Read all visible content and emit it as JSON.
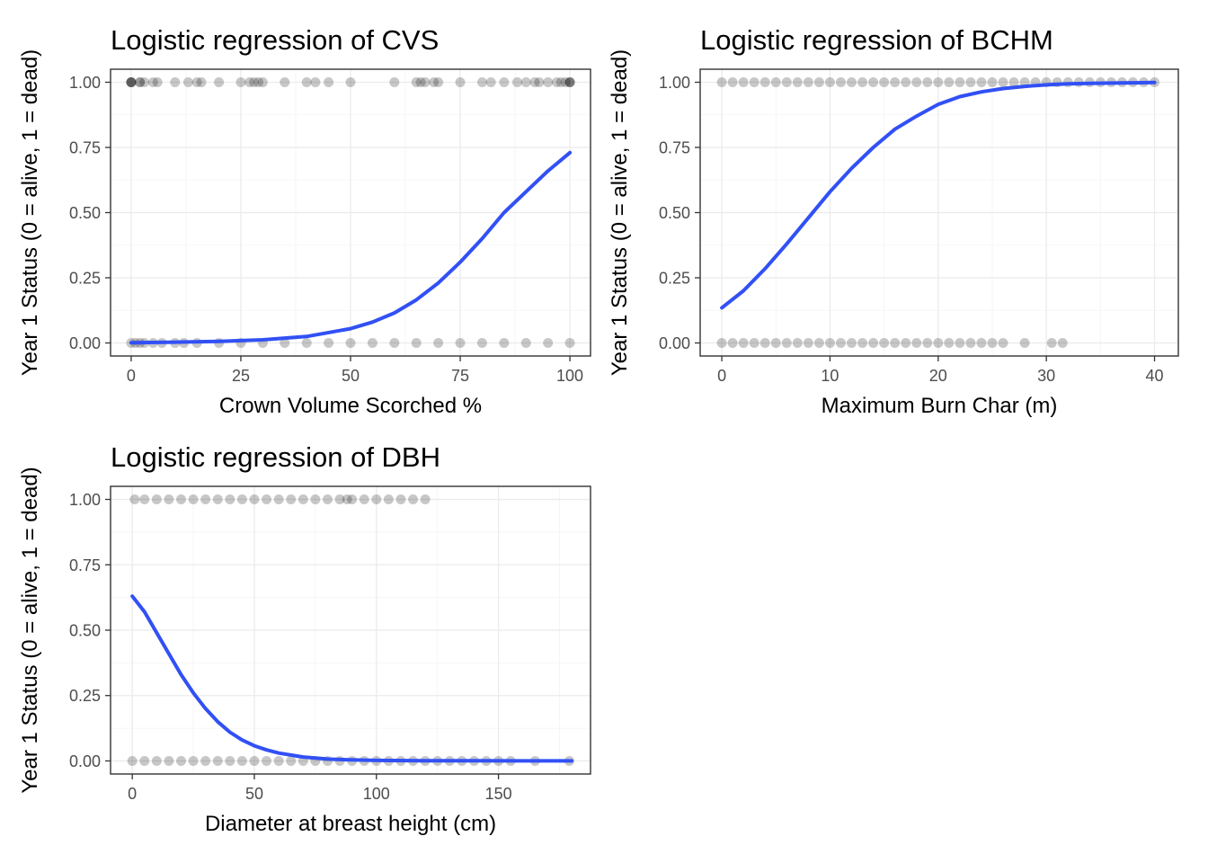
{
  "chart_data": [
    {
      "type": "scatter",
      "title": "Logistic regression of CVS",
      "xlabel": "Crown Volume Scorched %",
      "ylabel": "Year 1 Status (0 = alive, 1 = dead)",
      "xlim": [
        -4.7,
        104.7
      ],
      "ylim": [
        -0.05,
        1.05
      ],
      "xticks": [
        0,
        25,
        50,
        75,
        100
      ],
      "xtick_labels": [
        "0",
        "25",
        "50",
        "75",
        "100"
      ],
      "yticks": [
        0,
        0.25,
        0.5,
        0.75,
        1.0
      ],
      "ytick_labels": [
        "0.00",
        "0.25",
        "0.50",
        "0.75",
        "1.00"
      ],
      "grid": true,
      "point_color": "#000000",
      "line_color": "#3150f5",
      "series": [
        {
          "kind": "points",
          "x": [
            0,
            1,
            2,
            3,
            5,
            7,
            10,
            12,
            15,
            20,
            25,
            30,
            35,
            40,
            45,
            50,
            55,
            60,
            65,
            70,
            75,
            80,
            85,
            90,
            95,
            100,
            0,
            0,
            0,
            0,
            2,
            2,
            3,
            5,
            6,
            10,
            13,
            15,
            16,
            20,
            25,
            27,
            28,
            29,
            30,
            35,
            40,
            42,
            45,
            50,
            60,
            65,
            66,
            67,
            69,
            70,
            75,
            80,
            82,
            85,
            88,
            90,
            92,
            93,
            95,
            97,
            98,
            99,
            100,
            100,
            100
          ],
          "y": [
            0,
            0,
            0,
            0,
            0,
            0,
            0,
            0,
            0,
            0,
            0,
            0,
            0,
            0,
            0,
            0,
            0,
            0,
            0,
            0,
            0,
            0,
            0,
            0,
            0,
            0,
            1,
            1,
            1,
            1,
            1,
            1,
            1,
            1,
            1,
            1,
            1,
            1,
            1,
            1,
            1,
            1,
            1,
            1,
            1,
            1,
            1,
            1,
            1,
            1,
            1,
            1,
            1,
            1,
            1,
            1,
            1,
            1,
            1,
            1,
            1,
            1,
            1,
            1,
            1,
            1,
            1,
            1,
            1,
            1,
            1
          ]
        },
        {
          "kind": "line",
          "x": [
            0,
            10,
            20,
            30,
            40,
            50,
            55,
            60,
            65,
            70,
            75,
            80,
            85,
            90,
            95,
            100
          ],
          "y": [
            0.001,
            0.003,
            0.006,
            0.012,
            0.025,
            0.055,
            0.08,
            0.115,
            0.165,
            0.23,
            0.31,
            0.4,
            0.5,
            0.58,
            0.66,
            0.73
          ]
        }
      ]
    },
    {
      "type": "scatter",
      "title": "Logistic regression of BCHM",
      "xlabel": "Maximum Burn Char (m)",
      "ylabel": "Year 1 Status (0 = alive, 1 = dead)",
      "xlim": [
        -2.0,
        42.2
      ],
      "ylim": [
        -0.05,
        1.05
      ],
      "xticks": [
        0,
        10,
        20,
        30,
        40
      ],
      "xtick_labels": [
        "0",
        "10",
        "20",
        "30",
        "40"
      ],
      "yticks": [
        0,
        0.25,
        0.5,
        0.75,
        1.0
      ],
      "ytick_labels": [
        "0.00",
        "0.25",
        "0.50",
        "0.75",
        "1.00"
      ],
      "grid": true,
      "point_color": "#000000",
      "line_color": "#3150f5",
      "series": [
        {
          "kind": "points",
          "x": [
            0,
            1,
            2,
            3,
            4,
            5,
            6,
            7,
            8,
            9,
            10,
            11,
            12,
            13,
            14,
            15,
            16,
            17,
            18,
            19,
            20,
            21,
            22,
            23,
            24,
            25,
            26,
            27,
            28,
            29,
            30,
            31,
            32,
            33,
            34,
            35,
            36,
            37,
            38,
            39,
            40,
            0,
            1,
            2,
            3,
            4,
            5,
            6,
            7,
            8,
            9,
            10,
            11,
            12,
            13,
            14,
            15,
            16,
            17,
            18,
            19,
            20,
            21,
            22,
            23,
            24,
            25,
            26,
            28,
            30.5,
            31.5
          ],
          "y": [
            1,
            1,
            1,
            1,
            1,
            1,
            1,
            1,
            1,
            1,
            1,
            1,
            1,
            1,
            1,
            1,
            1,
            1,
            1,
            1,
            1,
            1,
            1,
            1,
            1,
            1,
            1,
            1,
            1,
            1,
            1,
            1,
            1,
            1,
            1,
            1,
            1,
            1,
            1,
            1,
            1,
            0,
            0,
            0,
            0,
            0,
            0,
            0,
            0,
            0,
            0,
            0,
            0,
            0,
            0,
            0,
            0,
            0,
            0,
            0,
            0,
            0,
            0,
            0,
            0,
            0,
            0,
            0,
            0,
            0,
            0
          ]
        },
        {
          "kind": "line",
          "x": [
            0,
            2,
            4,
            6,
            8,
            10,
            12,
            14,
            16,
            18,
            20,
            22,
            24,
            26,
            28,
            30,
            32,
            34,
            36,
            38,
            40
          ],
          "y": [
            0.135,
            0.2,
            0.285,
            0.38,
            0.48,
            0.58,
            0.67,
            0.75,
            0.82,
            0.87,
            0.915,
            0.945,
            0.963,
            0.976,
            0.984,
            0.99,
            0.994,
            0.996,
            0.997,
            0.998,
            0.999
          ]
        }
      ]
    },
    {
      "type": "scatter",
      "title": "Logistic regression of DBH",
      "xlabel": "Diameter at breast height (cm)",
      "ylabel": "Year 1 Status (0 = alive, 1 = dead)",
      "xlim": [
        -8.9,
        187.7
      ],
      "ylim": [
        -0.05,
        1.05
      ],
      "xticks": [
        0,
        50,
        100,
        150
      ],
      "xtick_labels": [
        "0",
        "50",
        "100",
        "150"
      ],
      "yticks": [
        0,
        0.25,
        0.5,
        0.75,
        1.0
      ],
      "ytick_labels": [
        "0.00",
        "0.25",
        "0.50",
        "0.75",
        "1.00"
      ],
      "grid": true,
      "point_color": "#000000",
      "line_color": "#3150f5",
      "series": [
        {
          "kind": "points",
          "x": [
            0,
            5,
            10,
            15,
            20,
            25,
            30,
            35,
            40,
            45,
            50,
            55,
            60,
            65,
            70,
            75,
            80,
            85,
            90,
            95,
            100,
            105,
            110,
            115,
            120,
            125,
            130,
            135,
            140,
            145,
            150,
            155,
            165,
            179,
            1,
            5,
            10,
            15,
            20,
            25,
            30,
            35,
            40,
            45,
            50,
            55,
            60,
            65,
            70,
            75,
            80,
            85,
            88,
            90,
            95,
            100,
            105,
            110,
            115,
            120
          ],
          "y": [
            0,
            0,
            0,
            0,
            0,
            0,
            0,
            0,
            0,
            0,
            0,
            0,
            0,
            0,
            0,
            0,
            0,
            0,
            0,
            0,
            0,
            0,
            0,
            0,
            0,
            0,
            0,
            0,
            0,
            0,
            0,
            0,
            0,
            0,
            1,
            1,
            1,
            1,
            1,
            1,
            1,
            1,
            1,
            1,
            1,
            1,
            1,
            1,
            1,
            1,
            1,
            1,
            1,
            1,
            1,
            1,
            1,
            1,
            1,
            1
          ]
        },
        {
          "kind": "line",
          "x": [
            0,
            5,
            10,
            15,
            20,
            25,
            30,
            35,
            40,
            45,
            50,
            55,
            60,
            70,
            80,
            90,
            100,
            120,
            140,
            160,
            180
          ],
          "y": [
            0.63,
            0.57,
            0.49,
            0.41,
            0.33,
            0.26,
            0.2,
            0.15,
            0.11,
            0.08,
            0.058,
            0.042,
            0.03,
            0.015,
            0.007,
            0.004,
            0.002,
            0.001,
            0.0005,
            0.0002,
            0.0001
          ]
        }
      ]
    }
  ]
}
